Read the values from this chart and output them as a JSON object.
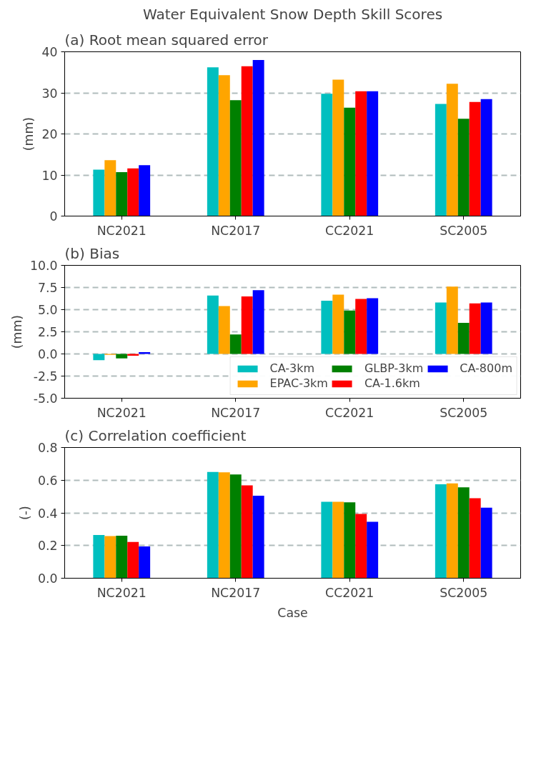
{
  "chart_data": [
    {
      "type": "bar",
      "title": "Water Equivalent Snow Depth Skill Scores",
      "subtitle": "(a) Root mean squared error",
      "ylabel": "(mm)",
      "categories": [
        "NC2021",
        "NC2017",
        "CC2021",
        "SC2005"
      ],
      "ylim": [
        0,
        40
      ],
      "yticks": [
        0,
        10,
        20,
        30,
        40
      ],
      "grid": "y",
      "legend": false,
      "series": [
        {
          "color": "#00bfbf",
          "values": [
            11.3,
            36.2,
            29.8,
            27.3
          ]
        },
        {
          "color": "#ffa500",
          "values": [
            13.6,
            34.3,
            33.2,
            32.2
          ]
        },
        {
          "color": "#008000",
          "values": [
            10.7,
            28.2,
            26.4,
            23.7
          ]
        },
        {
          "color": "#ff0000",
          "values": [
            11.6,
            36.5,
            30.4,
            27.8
          ]
        },
        {
          "color": "#0000ff",
          "values": [
            12.4,
            38.0,
            30.4,
            28.5
          ]
        }
      ]
    },
    {
      "type": "bar",
      "title": "(b) Bias",
      "ylabel": "(mm)",
      "categories": [
        "NC2021",
        "NC2017",
        "CC2021",
        "SC2005"
      ],
      "ylim": [
        -5,
        10
      ],
      "yticks": [
        {
          "value": -5,
          "label": "-5.0"
        },
        {
          "value": -2.5,
          "label": "-2.5"
        },
        {
          "value": 0,
          "label": "0.0"
        },
        {
          "value": 2.5,
          "label": "2.5"
        },
        {
          "value": 5,
          "label": "5.0"
        },
        {
          "value": 7.5,
          "label": "7.5"
        },
        {
          "value": 10,
          "label": "10.0"
        }
      ],
      "grid": "y",
      "legend": "bottom right",
      "series": [
        {
          "name": "CA-3km",
          "color": "#00bfbf",
          "values": [
            -0.7,
            6.6,
            6.0,
            5.8
          ]
        },
        {
          "name": "EPAC-3km",
          "color": "#ffa500",
          "values": [
            -0.1,
            5.4,
            6.7,
            7.6
          ]
        },
        {
          "name": "GLBP-3km",
          "color": "#008000",
          "values": [
            -0.5,
            2.2,
            4.9,
            3.5
          ]
        },
        {
          "name": "CA-1.6km",
          "color": "#ff0000",
          "values": [
            -0.2,
            6.5,
            6.2,
            5.7
          ]
        },
        {
          "name": "CA-800m",
          "color": "#0000ff",
          "values": [
            0.2,
            7.2,
            6.3,
            5.8
          ]
        }
      ]
    },
    {
      "type": "bar",
      "title": "(c) Correlation coefficient",
      "ylabel": "(-)",
      "xlabel": "Case",
      "categories": [
        "NC2021",
        "NC2017",
        "CC2021",
        "SC2005"
      ],
      "ylim": [
        0,
        0.8
      ],
      "yticks": [
        {
          "value": 0,
          "label": "0.0"
        },
        {
          "value": 0.2,
          "label": "0.2"
        },
        {
          "value": 0.4,
          "label": "0.4"
        },
        {
          "value": 0.6,
          "label": "0.6"
        },
        {
          "value": 0.8,
          "label": "0.8"
        }
      ],
      "grid": "y",
      "legend": false,
      "series": [
        {
          "color": "#00bfbf",
          "values": [
            0.265,
            0.65,
            0.468,
            0.575
          ]
        },
        {
          "color": "#ffa500",
          "values": [
            0.258,
            0.648,
            0.468,
            0.58
          ]
        },
        {
          "color": "#008000",
          "values": [
            0.26,
            0.635,
            0.465,
            0.556
          ]
        },
        {
          "color": "#ff0000",
          "values": [
            0.222,
            0.568,
            0.393,
            0.49
          ]
        },
        {
          "color": "#0000ff",
          "values": [
            0.195,
            0.505,
            0.345,
            0.432
          ]
        }
      ]
    }
  ]
}
